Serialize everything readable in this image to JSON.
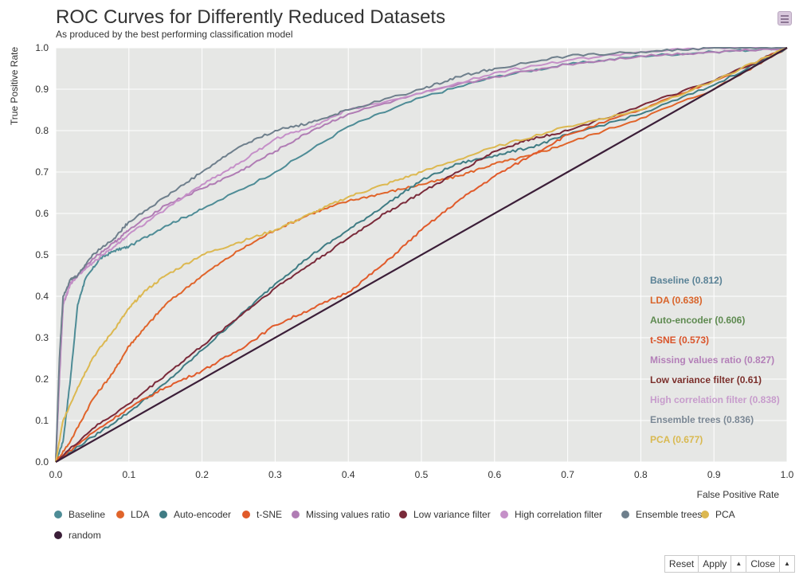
{
  "title": "ROC Curves for Differently Reduced Datasets",
  "subtitle": "As produced by the best performing classification model",
  "menu_icon": "hamburger-menu-icon",
  "controls": {
    "reset_label": "Reset",
    "apply_label": "Apply",
    "close_label": "Close",
    "arrow_icon": "caret-up-icon"
  },
  "chart_data": {
    "type": "line",
    "xlabel": "False Positive Rate",
    "ylabel": "True Positive Rate",
    "xlim": [
      0,
      1
    ],
    "ylim": [
      0,
      1
    ],
    "grid": true,
    "legend_placement": "bottom",
    "x_ticks": [
      "0.0",
      "0.1",
      "0.2",
      "0.3",
      "0.4",
      "0.5",
      "0.6",
      "0.7",
      "0.8",
      "0.9",
      "1.0"
    ],
    "y_ticks": [
      "0.0",
      "0.1",
      "0.2",
      "0.3",
      "0.4",
      "0.5",
      "0.6",
      "0.7",
      "0.8",
      "0.9",
      "1.0"
    ],
    "annotations": [
      {
        "text": "Baseline (0.812)",
        "color": "#5a8296"
      },
      {
        "text": "LDA (0.638)",
        "color": "#d9642a"
      },
      {
        "text": "Auto-encoder (0.606)",
        "color": "#5e8a50"
      },
      {
        "text": "t-SNE (0.573)",
        "color": "#d9542a"
      },
      {
        "text": "Missing values ratio (0.827)",
        "color": "#b37fb8"
      },
      {
        "text": "Low variance filter (0.61)",
        "color": "#7a2e2a"
      },
      {
        "text": "High correlation filter (0.838)",
        "color": "#c79ccc"
      },
      {
        "text": "Ensemble trees (0.836)",
        "color": "#7a8794"
      },
      {
        "text": "PCA (0.677)",
        "color": "#d9b950"
      }
    ],
    "series": [
      {
        "name": "Baseline",
        "color": "#4e8c96",
        "x": [
          0,
          0.01,
          0.02,
          0.03,
          0.04,
          0.06,
          0.08,
          0.1,
          0.15,
          0.2,
          0.3,
          0.4,
          0.5,
          0.6,
          0.7,
          0.8,
          0.9,
          1.0
        ],
        "y": [
          0,
          0.05,
          0.2,
          0.38,
          0.44,
          0.49,
          0.51,
          0.52,
          0.57,
          0.61,
          0.7,
          0.81,
          0.88,
          0.93,
          0.96,
          0.98,
          0.99,
          1.0
        ]
      },
      {
        "name": "LDA",
        "color": "#e0642a",
        "x": [
          0,
          0.02,
          0.05,
          0.08,
          0.1,
          0.12,
          0.15,
          0.2,
          0.25,
          0.3,
          0.35,
          0.4,
          0.45,
          0.5,
          0.55,
          0.6,
          0.65,
          0.7,
          0.8,
          0.9,
          1.0
        ],
        "y": [
          0,
          0.05,
          0.15,
          0.22,
          0.28,
          0.32,
          0.38,
          0.45,
          0.51,
          0.56,
          0.6,
          0.63,
          0.65,
          0.67,
          0.69,
          0.72,
          0.74,
          0.77,
          0.83,
          0.9,
          1.0
        ]
      },
      {
        "name": "Auto-encoder",
        "color": "#3f7c84",
        "x": [
          0,
          0.05,
          0.1,
          0.15,
          0.2,
          0.25,
          0.3,
          0.35,
          0.4,
          0.45,
          0.5,
          0.55,
          0.6,
          0.65,
          0.7,
          0.8,
          0.9,
          1.0
        ],
        "y": [
          0,
          0.06,
          0.12,
          0.19,
          0.27,
          0.35,
          0.43,
          0.5,
          0.56,
          0.62,
          0.68,
          0.72,
          0.74,
          0.76,
          0.79,
          0.84,
          0.91,
          1.0
        ]
      },
      {
        "name": "t-SNE",
        "color": "#e05a2a",
        "x": [
          0,
          0.05,
          0.1,
          0.15,
          0.2,
          0.25,
          0.3,
          0.35,
          0.4,
          0.45,
          0.5,
          0.55,
          0.6,
          0.65,
          0.7,
          0.8,
          0.9,
          1.0
        ],
        "y": [
          0,
          0.07,
          0.13,
          0.18,
          0.22,
          0.27,
          0.33,
          0.37,
          0.41,
          0.48,
          0.56,
          0.63,
          0.69,
          0.74,
          0.79,
          0.85,
          0.92,
          1.0
        ]
      },
      {
        "name": "Missing values ratio",
        "color": "#b07cb4",
        "x": [
          0,
          0.005,
          0.01,
          0.02,
          0.03,
          0.05,
          0.08,
          0.1,
          0.15,
          0.2,
          0.25,
          0.3,
          0.35,
          0.4,
          0.5,
          0.6,
          0.7,
          0.8,
          0.9,
          1.0
        ],
        "y": [
          0,
          0.2,
          0.38,
          0.43,
          0.45,
          0.49,
          0.53,
          0.56,
          0.62,
          0.66,
          0.7,
          0.75,
          0.8,
          0.84,
          0.89,
          0.93,
          0.96,
          0.98,
          0.99,
          1.0
        ]
      },
      {
        "name": "Low variance filter",
        "color": "#7a2a3a",
        "x": [
          0,
          0.05,
          0.1,
          0.15,
          0.2,
          0.25,
          0.3,
          0.35,
          0.4,
          0.45,
          0.5,
          0.55,
          0.6,
          0.65,
          0.7,
          0.8,
          0.9,
          1.0
        ],
        "y": [
          0,
          0.08,
          0.14,
          0.21,
          0.28,
          0.35,
          0.42,
          0.48,
          0.54,
          0.6,
          0.65,
          0.7,
          0.75,
          0.78,
          0.8,
          0.86,
          0.92,
          1.0
        ]
      },
      {
        "name": "High correlation filter",
        "color": "#c590c8",
        "x": [
          0,
          0.005,
          0.01,
          0.02,
          0.03,
          0.05,
          0.08,
          0.1,
          0.15,
          0.2,
          0.25,
          0.3,
          0.35,
          0.4,
          0.5,
          0.6,
          0.7,
          0.8,
          0.9,
          1.0
        ],
        "y": [
          0,
          0.22,
          0.38,
          0.43,
          0.45,
          0.48,
          0.52,
          0.55,
          0.61,
          0.67,
          0.72,
          0.78,
          0.81,
          0.85,
          0.89,
          0.94,
          0.97,
          0.99,
          1.0,
          1.0
        ]
      },
      {
        "name": "Ensemble trees",
        "color": "#6e7f8c",
        "x": [
          0,
          0.005,
          0.01,
          0.02,
          0.03,
          0.05,
          0.08,
          0.1,
          0.15,
          0.2,
          0.25,
          0.3,
          0.35,
          0.4,
          0.5,
          0.55,
          0.6,
          0.7,
          0.8,
          0.9,
          1.0
        ],
        "y": [
          0,
          0.25,
          0.4,
          0.44,
          0.45,
          0.5,
          0.54,
          0.58,
          0.64,
          0.7,
          0.76,
          0.8,
          0.82,
          0.85,
          0.9,
          0.93,
          0.95,
          0.98,
          0.99,
          1.0,
          1.0
        ]
      },
      {
        "name": "PCA",
        "color": "#dcb850",
        "x": [
          0,
          0.01,
          0.03,
          0.05,
          0.08,
          0.1,
          0.12,
          0.15,
          0.2,
          0.25,
          0.3,
          0.35,
          0.4,
          0.45,
          0.5,
          0.6,
          0.7,
          0.8,
          0.9,
          1.0
        ],
        "y": [
          0,
          0.1,
          0.18,
          0.25,
          0.32,
          0.37,
          0.41,
          0.45,
          0.5,
          0.53,
          0.56,
          0.6,
          0.64,
          0.67,
          0.7,
          0.76,
          0.81,
          0.85,
          0.92,
          1.0
        ]
      },
      {
        "name": "random",
        "color": "#3b1e38",
        "x": [
          0,
          1
        ],
        "y": [
          0,
          1
        ]
      }
    ]
  }
}
